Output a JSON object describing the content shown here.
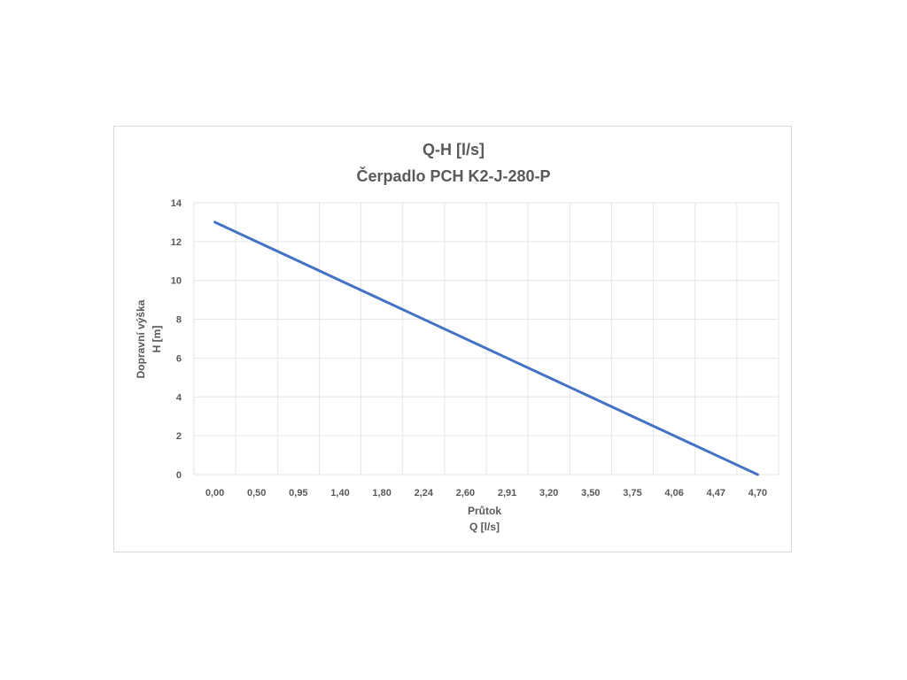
{
  "chart_data": {
    "type": "line",
    "title": [
      "Q-H  [l/s]",
      "Čerpadlo PCH K2-J-280-P"
    ],
    "xlabel": [
      "Průtok",
      "Q [l/s]"
    ],
    "ylabel": [
      "Dopravní výška",
      "H [m]"
    ],
    "categories": [
      "0,00",
      "0,50",
      "0,95",
      "1,40",
      "1,80",
      "2,24",
      "2,60",
      "2,91",
      "3,20",
      "3,50",
      "3,75",
      "4,06",
      "4,47",
      "4,70"
    ],
    "series": [
      {
        "values": [
          13,
          12,
          11,
          10,
          9,
          8,
          7,
          6,
          5,
          4,
          3,
          2,
          1,
          0
        ],
        "color": "#4472c4"
      }
    ],
    "ylim": [
      0,
      14
    ],
    "yticks": [
      "0",
      "2",
      "4",
      "6",
      "8",
      "10",
      "12",
      "14"
    ],
    "grid": "on",
    "grid_color": "#e6e6e6",
    "legend": "none"
  }
}
